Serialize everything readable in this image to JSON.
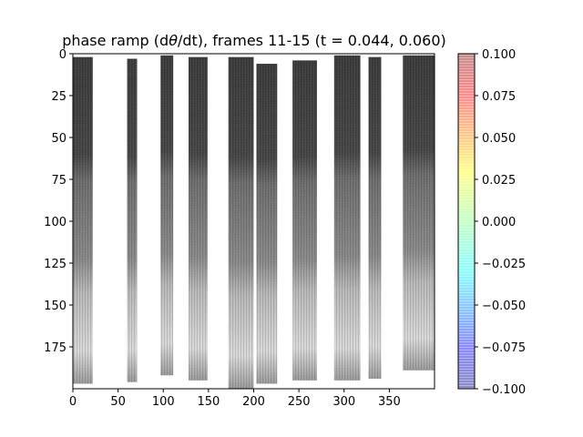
{
  "chart_data": {
    "type": "heatmap",
    "title_prefix": "phase ramp (d",
    "title_theta": "θ",
    "title_suffix": "/dt), frames 11-15 (t = 0.044, 0.060)",
    "xlabel": "",
    "ylabel": "",
    "xlim": [
      0,
      400
    ],
    "ylim": [
      200,
      0
    ],
    "x_ticks": [
      0,
      50,
      100,
      150,
      200,
      250,
      300,
      350
    ],
    "y_ticks": [
      0,
      25,
      50,
      75,
      100,
      125,
      150,
      175
    ],
    "colormap": "grayscale image overlaid with jet colorbar",
    "colorbar": {
      "vmin": -0.1,
      "vmax": 0.1,
      "ticks": [
        "0.100",
        "0.075",
        "0.050",
        "0.025",
        "0.000",
        "−0.025",
        "−0.050",
        "−0.075",
        "−0.100"
      ]
    },
    "strips": [
      {
        "x0": 0,
        "x1": 22,
        "y0": 2,
        "y1": 197,
        "transition": 66
      },
      {
        "x0": 60,
        "x1": 71,
        "y0": 3,
        "y1": 196,
        "transition": 66
      },
      {
        "x0": 97,
        "x1": 111,
        "y0": 1,
        "y1": 192,
        "transition": 68
      },
      {
        "x0": 128,
        "x1": 149,
        "y0": 2,
        "y1": 195,
        "transition": 70
      },
      {
        "x0": 172,
        "x1": 200,
        "y0": 2,
        "y1": 200,
        "transition": 78
      },
      {
        "x0": 203,
        "x1": 226,
        "y0": 6,
        "y1": 197,
        "transition": 85
      },
      {
        "x0": 243,
        "x1": 270,
        "y0": 4,
        "y1": 195,
        "transition": 80
      },
      {
        "x0": 289,
        "x1": 318,
        "y0": 1,
        "y1": 195,
        "transition": 92
      },
      {
        "x0": 327,
        "x1": 341,
        "y0": 2,
        "y1": 194,
        "transition": 88
      },
      {
        "x0": 365,
        "x1": 400,
        "y0": 1,
        "y1": 189,
        "transition": 95
      }
    ]
  }
}
